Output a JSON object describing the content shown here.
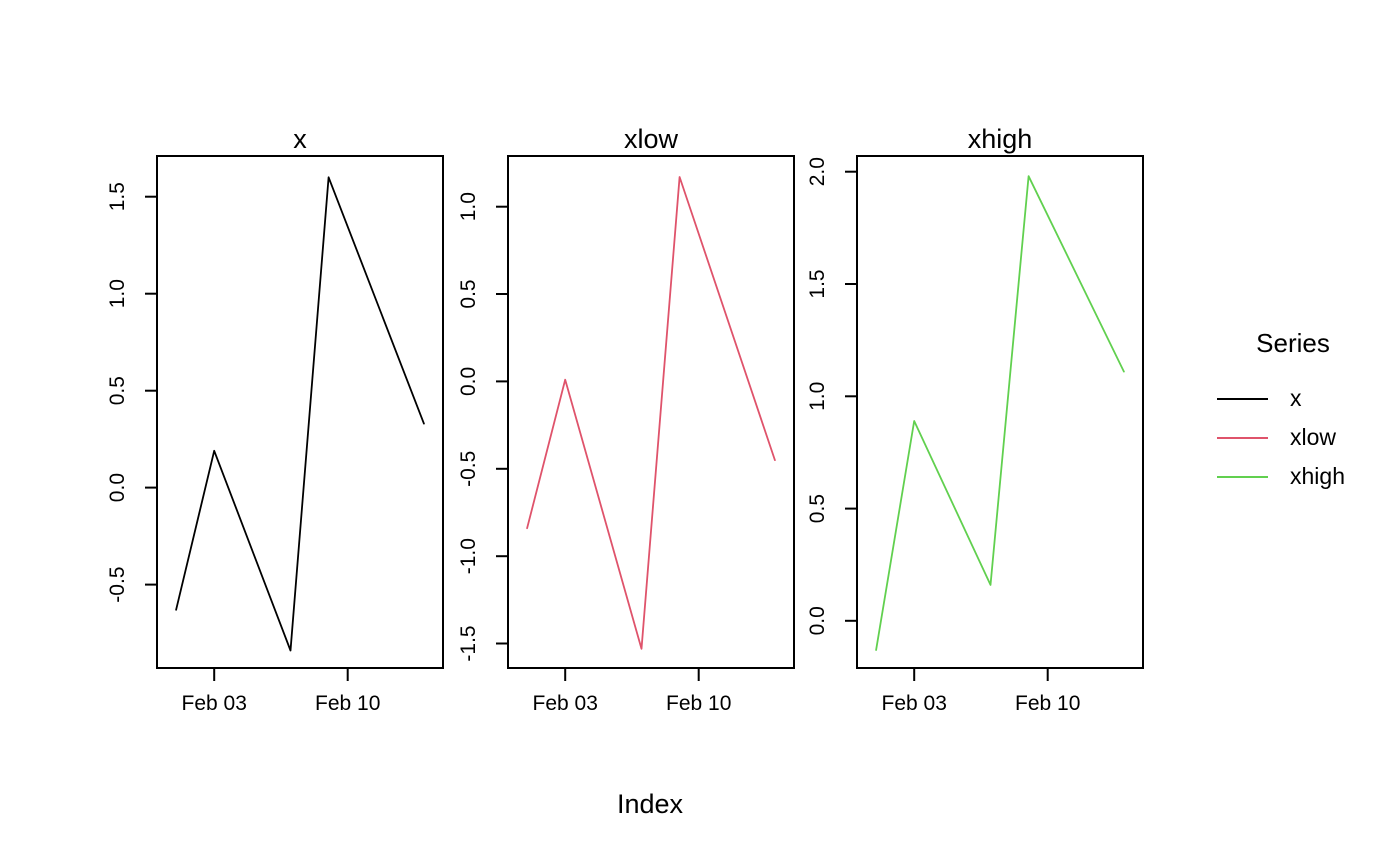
{
  "xlabel": "Index",
  "legend": {
    "title": "Series",
    "entries": [
      {
        "label": "x",
        "color": "#000000"
      },
      {
        "label": "xlow",
        "color": "#DF536B"
      },
      {
        "label": "xhigh",
        "color": "#61D04F"
      }
    ]
  },
  "chart_data": [
    {
      "type": "line",
      "title": "x",
      "color": "#000000",
      "x": [
        1,
        3,
        7,
        9,
        14
      ],
      "values": [
        -0.63,
        0.19,
        -0.84,
        1.6,
        0.33
      ],
      "xlim": [
        0,
        15
      ],
      "ylim": [
        -0.93,
        1.71
      ],
      "xticks": [
        3,
        10
      ],
      "xtick_labels": [
        "Feb 03",
        "Feb 10"
      ],
      "yticks": [
        -0.5,
        0.0,
        0.5,
        1.0,
        1.5
      ],
      "ytick_labels": [
        "-0.5",
        "0.0",
        "0.5",
        "1.0",
        "1.5"
      ],
      "grid": false
    },
    {
      "type": "line",
      "title": "xlow",
      "color": "#DF536B",
      "x": [
        1,
        3,
        7,
        9,
        14
      ],
      "values": [
        -0.84,
        0.01,
        -1.53,
        1.17,
        -0.45
      ],
      "xlim": [
        0,
        15
      ],
      "ylim": [
        -1.64,
        1.29
      ],
      "xticks": [
        3,
        10
      ],
      "xtick_labels": [
        "Feb 03",
        "Feb 10"
      ],
      "yticks": [
        -1.5,
        -1.0,
        -0.5,
        0.0,
        0.5,
        1.0
      ],
      "ytick_labels": [
        "-1.5",
        "-1.0",
        "-0.5",
        "0.0",
        "0.5",
        "1.0"
      ],
      "grid": false
    },
    {
      "type": "line",
      "title": "xhigh",
      "color": "#61D04F",
      "x": [
        1,
        3,
        7,
        9,
        14
      ],
      "values": [
        -0.13,
        0.89,
        0.16,
        1.98,
        1.11
      ],
      "xlim": [
        0,
        15
      ],
      "ylim": [
        -0.21,
        2.07
      ],
      "xticks": [
        3,
        10
      ],
      "xtick_labels": [
        "Feb 03",
        "Feb 10"
      ],
      "yticks": [
        0.0,
        0.5,
        1.0,
        1.5,
        2.0
      ],
      "ytick_labels": [
        "0.0",
        "0.5",
        "1.0",
        "1.5",
        "2.0"
      ],
      "grid": false
    }
  ]
}
